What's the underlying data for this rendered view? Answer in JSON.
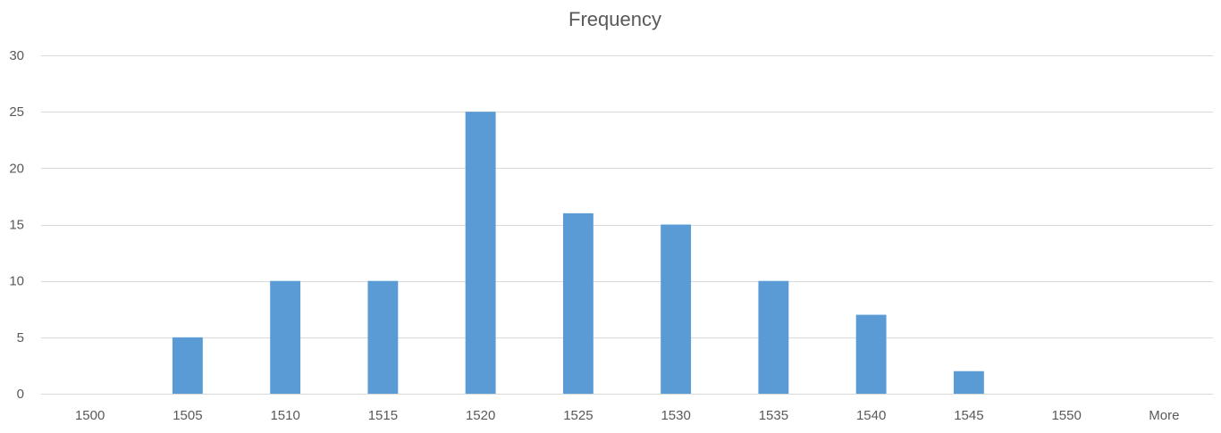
{
  "chart_data": {
    "type": "bar",
    "title": "Frequency",
    "xlabel": "",
    "ylabel": "",
    "categories": [
      "1500",
      "1505",
      "1510",
      "1515",
      "1520",
      "1525",
      "1530",
      "1535",
      "1540",
      "1545",
      "1550",
      "More"
    ],
    "series": [
      {
        "values": [
          0,
          5,
          10,
          10,
          25,
          16,
          15,
          10,
          7,
          2,
          0,
          0
        ]
      }
    ],
    "ylim": [
      0,
      30
    ],
    "yticks": [
      0,
      5,
      10,
      15,
      20,
      25,
      30
    ],
    "grid": true,
    "legend": "none",
    "bar_color": "#5b9bd5",
    "grid_color": "#d9d9d9",
    "text_color": "#595959"
  }
}
